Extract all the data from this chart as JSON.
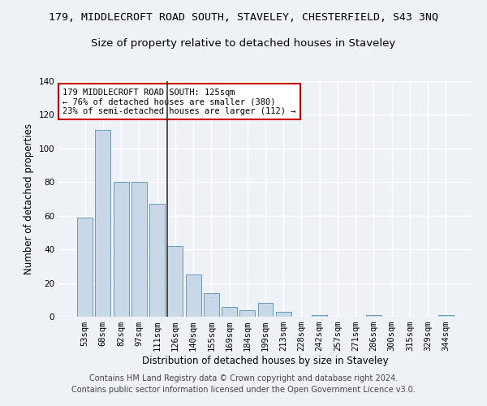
{
  "title_line1": "179, MIDDLECROFT ROAD SOUTH, STAVELEY, CHESTERFIELD, S43 3NQ",
  "title_line2": "Size of property relative to detached houses in Staveley",
  "xlabel": "Distribution of detached houses by size in Staveley",
  "ylabel": "Number of detached properties",
  "categories": [
    "53sqm",
    "68sqm",
    "82sqm",
    "97sqm",
    "111sqm",
    "126sqm",
    "140sqm",
    "155sqm",
    "169sqm",
    "184sqm",
    "199sqm",
    "213sqm",
    "228sqm",
    "242sqm",
    "257sqm",
    "271sqm",
    "286sqm",
    "300sqm",
    "315sqm",
    "329sqm",
    "344sqm"
  ],
  "values": [
    59,
    111,
    80,
    80,
    67,
    42,
    25,
    14,
    6,
    4,
    8,
    3,
    0,
    1,
    0,
    0,
    1,
    0,
    0,
    0,
    1
  ],
  "bar_color": "#c8d8e8",
  "bar_edge_color": "#6a9ab8",
  "highlight_index": 5,
  "highlight_line_color": "#333333",
  "ylim": [
    0,
    140
  ],
  "yticks": [
    0,
    20,
    40,
    60,
    80,
    100,
    120,
    140
  ],
  "annotation_text": "179 MIDDLECROFT ROAD SOUTH: 125sqm\n← 76% of detached houses are smaller (380)\n23% of semi-detached houses are larger (112) →",
  "annotation_box_color": "#ffffff",
  "annotation_box_edge_color": "#cc0000",
  "footer_line1": "Contains HM Land Registry data © Crown copyright and database right 2024.",
  "footer_line2": "Contains public sector information licensed under the Open Government Licence v3.0.",
  "bg_color": "#eef2f7",
  "plot_bg_color": "#eef2f7",
  "grid_color": "#ffffff",
  "title_fontsize": 9.5,
  "subtitle_fontsize": 9.5,
  "axis_label_fontsize": 8.5,
  "tick_fontsize": 7.5,
  "annotation_fontsize": 7.5,
  "footer_fontsize": 7
}
